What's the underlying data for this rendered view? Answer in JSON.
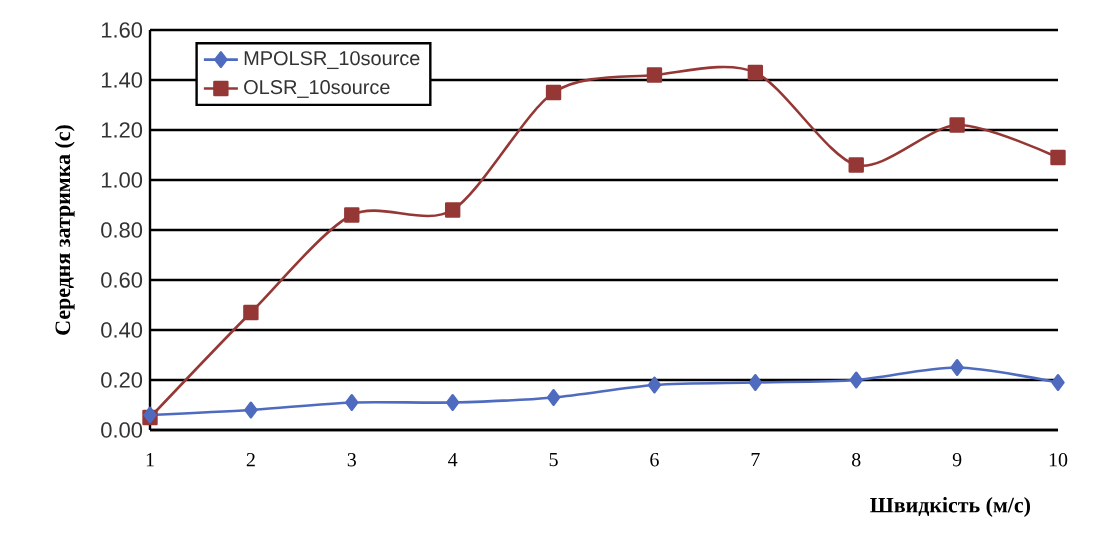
{
  "chart_data": {
    "type": "line",
    "xlabel": "Швидкість (м/с)",
    "ylabel": "Середня затримка (с)",
    "x": [
      1,
      2,
      3,
      4,
      5,
      6,
      7,
      8,
      9,
      10
    ],
    "series": [
      {
        "name": "MPOLSR_10source",
        "color": "#4f6bbf",
        "marker": "diamond",
        "values": [
          0.06,
          0.08,
          0.11,
          0.11,
          0.13,
          0.18,
          0.19,
          0.2,
          0.25,
          0.19
        ]
      },
      {
        "name": "OLSR_10source",
        "color": "#953735",
        "marker": "square",
        "values": [
          0.05,
          0.47,
          0.86,
          0.88,
          1.35,
          1.42,
          1.43,
          1.06,
          1.22,
          1.09
        ]
      }
    ],
    "xlim": [
      1,
      10
    ],
    "xticks": [
      1,
      2,
      3,
      4,
      5,
      6,
      7,
      8,
      9,
      10
    ],
    "ylim": [
      0,
      1.6
    ],
    "yticks": [
      {
        "value": 0,
        "label": "0.00"
      },
      {
        "value": 0.2,
        "label": "0.20"
      },
      {
        "value": 0.4,
        "label": "0.40"
      },
      {
        "value": 0.6,
        "label": "0.60"
      },
      {
        "value": 0.8,
        "label": "0.80"
      },
      {
        "value": 1.0,
        "label": "1.00"
      },
      {
        "value": 1.2,
        "label": "1.20"
      },
      {
        "value": 1.4,
        "label": "1.40"
      },
      {
        "value": 1.6,
        "label": "1.60"
      }
    ],
    "grid": "y",
    "legend": "top left",
    "line_style": "solid"
  }
}
